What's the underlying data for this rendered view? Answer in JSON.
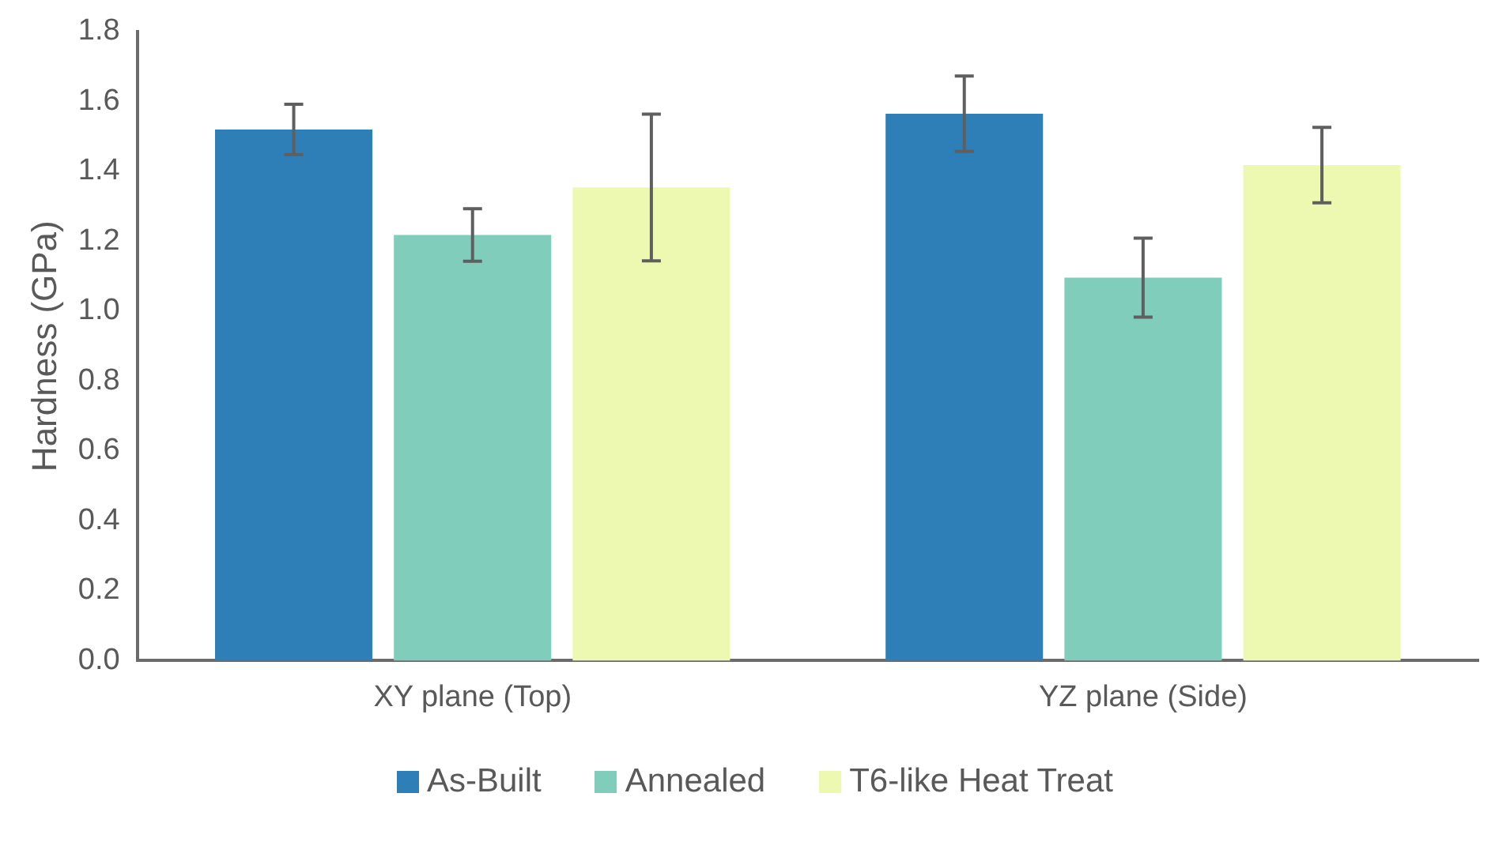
{
  "chart_data": {
    "type": "bar",
    "ylabel": "Hardness (GPa)",
    "categories": [
      "XY plane (Top)",
      "YZ plane (Side)"
    ],
    "series": [
      {
        "name": "As-Built",
        "color": "#2e7eb8",
        "values": [
          1.52,
          1.565
        ],
        "errors": [
          0.072,
          0.108
        ]
      },
      {
        "name": "Annealed",
        "color": "#80cdbb",
        "values": [
          1.218,
          1.096
        ],
        "errors": [
          0.075,
          0.113
        ]
      },
      {
        "name": "T6-like Heat Treat",
        "color": "#edf8b0",
        "values": [
          1.354,
          1.418
        ],
        "errors": [
          0.21,
          0.108
        ]
      }
    ],
    "ylim": [
      0,
      1.8
    ],
    "yticks": [
      {
        "value": 0,
        "label": "0.0"
      },
      0.2,
      0.4,
      0.6,
      0.8,
      {
        "value": 1,
        "label": "1.0"
      },
      1.2,
      1.4,
      1.6,
      1.8
    ],
    "grid": false,
    "legend": "bottom"
  }
}
